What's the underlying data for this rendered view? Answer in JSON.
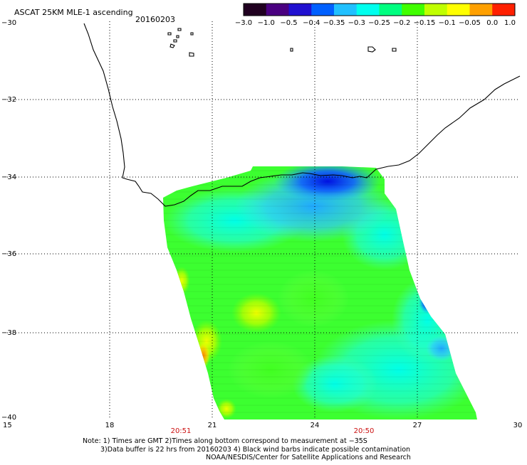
{
  "header": {
    "title": "ASCAT 25KM MLE-1 ascending",
    "date": "20160203"
  },
  "colorbar": {
    "colors": [
      "#200020",
      "#4a0080",
      "#2010d0",
      "#0060ff",
      "#20c0ff",
      "#00ffee",
      "#00ff80",
      "#40ff00",
      "#c0ff00",
      "#ffff00",
      "#ffa000",
      "#ff2000"
    ],
    "tick_labels": [
      "−3.0",
      "−1.0",
      "−0.5",
      "−0.4",
      "−0.35",
      "−0.3",
      "−0.25",
      "−0.2",
      "−0.15",
      "−0.1",
      "−0.05",
      "0.0",
      "1.0"
    ]
  },
  "map": {
    "lon_range": [
      15,
      30
    ],
    "lat_range": [
      -40,
      -30
    ],
    "lon_ticks": [
      "15",
      "18",
      "21",
      "24",
      "27",
      "30"
    ],
    "lat_ticks": [
      "−30",
      "−32",
      "−34",
      "−36",
      "−38",
      "−40"
    ],
    "pass_times": [
      "20:51",
      "20:50"
    ]
  },
  "notes": {
    "line1": "Note: 1) Times are GMT 2)Times along bottom correspond to measurement at −35S",
    "line2": "3)Data buffer is 22 hrs from 20160203 4) Black wind barbs indicate possible contamination",
    "line3": "NOAA/NESDIS/Center for Satellite Applications and Research"
  }
}
